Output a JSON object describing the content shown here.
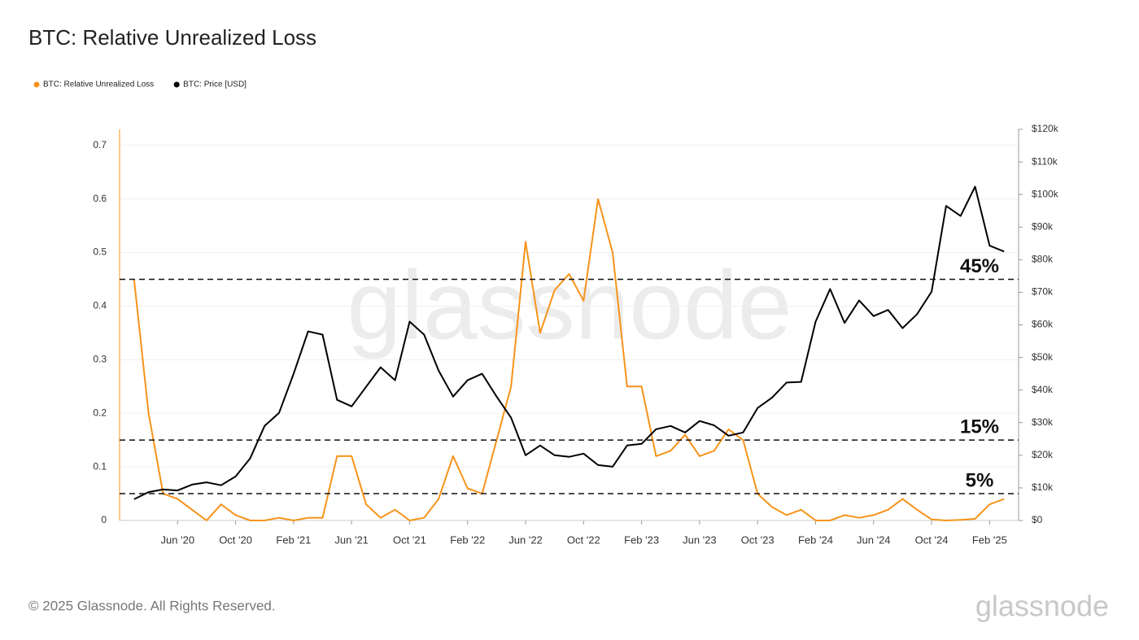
{
  "chart_data": {
    "type": "line",
    "title": "BTC: Relative Unrealized Loss",
    "footer": "© 2025 Glassnode. All Rights Reserved.",
    "brand": "glassnode",
    "x": [
      "2020-03",
      "2020-04",
      "2020-05",
      "2020-06",
      "2020-07",
      "2020-08",
      "2020-09",
      "2020-10",
      "2020-11",
      "2020-12",
      "2021-01",
      "2021-02",
      "2021-03",
      "2021-04",
      "2021-05",
      "2021-06",
      "2021-07",
      "2021-08",
      "2021-09",
      "2021-10",
      "2021-11",
      "2021-12",
      "2022-01",
      "2022-02",
      "2022-03",
      "2022-04",
      "2022-05",
      "2022-06",
      "2022-07",
      "2022-08",
      "2022-09",
      "2022-10",
      "2022-11",
      "2022-12",
      "2023-01",
      "2023-02",
      "2023-03",
      "2023-04",
      "2023-05",
      "2023-06",
      "2023-07",
      "2023-08",
      "2023-09",
      "2023-10",
      "2023-11",
      "2023-12",
      "2024-01",
      "2024-02",
      "2024-03",
      "2024-04",
      "2024-05",
      "2024-06",
      "2024-07",
      "2024-08",
      "2024-09",
      "2024-10",
      "2024-11",
      "2024-12",
      "2025-01",
      "2025-02",
      "2025-03"
    ],
    "xlim": [
      "2020-02",
      "2025-04"
    ],
    "xticks": [
      {
        "value": "2020-06",
        "label": "Jun '20"
      },
      {
        "value": "2020-10",
        "label": "Oct '20"
      },
      {
        "value": "2021-02",
        "label": "Feb '21"
      },
      {
        "value": "2021-06",
        "label": "Jun '21"
      },
      {
        "value": "2021-10",
        "label": "Oct '21"
      },
      {
        "value": "2022-02",
        "label": "Feb '22"
      },
      {
        "value": "2022-06",
        "label": "Jun '22"
      },
      {
        "value": "2022-10",
        "label": "Oct '22"
      },
      {
        "value": "2023-02",
        "label": "Feb '23"
      },
      {
        "value": "2023-06",
        "label": "Jun '23"
      },
      {
        "value": "2023-10",
        "label": "Oct '23"
      },
      {
        "value": "2024-02",
        "label": "Feb '24"
      },
      {
        "value": "2024-06",
        "label": "Jun '24"
      },
      {
        "value": "2024-10",
        "label": "Oct '24"
      },
      {
        "value": "2025-02",
        "label": "Feb '25"
      }
    ],
    "ylim": [
      0,
      0.73
    ],
    "yticks": [
      0,
      0.1,
      0.2,
      0.3,
      0.4,
      0.5,
      0.6,
      0.7
    ],
    "y2lim": [
      0,
      120000
    ],
    "y2ticks": [
      {
        "value": 0,
        "label": "$0"
      },
      {
        "value": 10000,
        "label": "$10k"
      },
      {
        "value": 20000,
        "label": "$20k"
      },
      {
        "value": 30000,
        "label": "$30k"
      },
      {
        "value": 40000,
        "label": "$40k"
      },
      {
        "value": 50000,
        "label": "$50k"
      },
      {
        "value": 60000,
        "label": "$60k"
      },
      {
        "value": 70000,
        "label": "$70k"
      },
      {
        "value": 80000,
        "label": "$80k"
      },
      {
        "value": 90000,
        "label": "$90k"
      },
      {
        "value": 100000,
        "label": "$100k"
      },
      {
        "value": 110000,
        "label": "$110k"
      },
      {
        "value": 120000,
        "label": "$120k"
      }
    ],
    "grid": true,
    "series": [
      {
        "name": "BTC: Relative Unrealized Loss",
        "color": "#f7931a",
        "axis": "y",
        "values": [
          0.45,
          0.2,
          0.05,
          0.04,
          0.02,
          0.0,
          0.03,
          0.01,
          0,
          0,
          0.005,
          0,
          0.005,
          0.005,
          0.12,
          0.12,
          0.03,
          0.005,
          0.02,
          0,
          0.005,
          0.04,
          0.12,
          0.06,
          0.05,
          0.15,
          0.25,
          0.52,
          0.35,
          0.43,
          0.46,
          0.41,
          0.6,
          0.5,
          0.25,
          0.25,
          0.12,
          0.13,
          0.16,
          0.12,
          0.13,
          0.17,
          0.15,
          0.05,
          0.025,
          0.01,
          0.02,
          0,
          0,
          0.01,
          0.005,
          0.01,
          0.02,
          0.04,
          0.02,
          0.002,
          0,
          0.001,
          0.003,
          0.03,
          0.04
        ]
      },
      {
        "name": "BTC: Price [USD]",
        "color": "#000000",
        "axis": "y2",
        "values": [
          6500,
          8700,
          9500,
          9200,
          11000,
          11700,
          10800,
          13500,
          19000,
          29000,
          33000,
          45000,
          58000,
          57000,
          37000,
          35000,
          41000,
          47000,
          43000,
          61000,
          57000,
          46000,
          38000,
          43000,
          45000,
          38000,
          31500,
          20000,
          23000,
          20000,
          19500,
          20500,
          17000,
          16500,
          23000,
          23500,
          28000,
          29000,
          27000,
          30500,
          29200,
          26000,
          27000,
          34500,
          37700,
          42300,
          42500,
          61000,
          71000,
          60600,
          67500,
          62700,
          64600,
          59000,
          63300,
          70200,
          96500,
          93400,
          102400,
          84300,
          82500
        ]
      }
    ],
    "annotations": [
      {
        "label": "45%",
        "value": 0.45
      },
      {
        "label": "15%",
        "value": 0.15
      },
      {
        "label": "5%",
        "value": 0.05
      }
    ]
  }
}
